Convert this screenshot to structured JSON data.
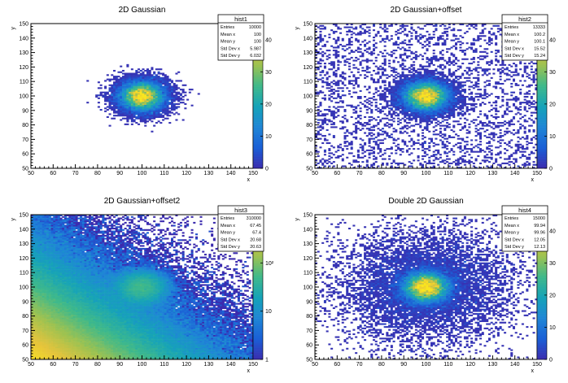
{
  "colors": {
    "frame": "#000000",
    "background": "#ffffff",
    "palette": [
      "#3b2bae",
      "#1b5fd6",
      "#1f86d6",
      "#16a3b8",
      "#3fb98a",
      "#9dc251",
      "#e6c43b",
      "#f9e51f"
    ]
  },
  "chart_data": [
    {
      "type": "heatmap",
      "title": "2D Gaussian",
      "xlabel": "x",
      "ylabel": "y",
      "xlim": [
        50,
        150
      ],
      "ylim": [
        50,
        150
      ],
      "x_ticks": [
        "50",
        "60",
        "70",
        "80",
        "90",
        "100",
        "110",
        "120",
        "130",
        "140",
        "150"
      ],
      "y_ticks": [
        "50",
        "60",
        "70",
        "80",
        "90",
        "100",
        "110",
        "120",
        "130",
        "140",
        "150"
      ],
      "colorbar": {
        "scale": "linear",
        "range": [
          0,
          45
        ],
        "ticks": [
          "0",
          "10",
          "20",
          "30",
          "40"
        ]
      },
      "stats": {
        "name": "hist1",
        "rows": [
          {
            "label": "Entries",
            "value": "10000"
          },
          {
            "label": "Mean x",
            "value": "100"
          },
          {
            "label": "Mean y",
            "value": "100"
          },
          {
            "label": "Std Dev x",
            "value": "5.987"
          },
          {
            "label": "Std Dev y",
            "value": "6.032"
          }
        ]
      },
      "components": [
        {
          "type": "gauss",
          "mx": 100,
          "my": 100,
          "sx": 5.987,
          "sy": 6.032,
          "peak": 45
        }
      ],
      "threshold": 0.6
    },
    {
      "type": "heatmap",
      "title": "2D Gaussian+offset",
      "xlabel": "x",
      "ylabel": "y",
      "xlim": [
        50,
        150
      ],
      "ylim": [
        50,
        150
      ],
      "x_ticks": [
        "50",
        "60",
        "70",
        "80",
        "90",
        "100",
        "110",
        "120",
        "130",
        "140",
        "150"
      ],
      "y_ticks": [
        "50",
        "60",
        "70",
        "80",
        "90",
        "100",
        "110",
        "120",
        "130",
        "140",
        "150"
      ],
      "colorbar": {
        "scale": "linear",
        "range": [
          0,
          45
        ],
        "ticks": [
          "0",
          "10",
          "20",
          "30",
          "40"
        ]
      },
      "stats": {
        "name": "hist2",
        "rows": [
          {
            "label": "Entries",
            "value": "13333"
          },
          {
            "label": "Mean x",
            "value": "100.2"
          },
          {
            "label": "Mean y",
            "value": "100.1"
          },
          {
            "label": "Std Dev x",
            "value": "15.52"
          },
          {
            "label": "Std Dev y",
            "value": "15.24"
          }
        ]
      },
      "components": [
        {
          "type": "gauss",
          "mx": 100,
          "my": 100,
          "sx": 6,
          "sy": 6,
          "peak": 45
        },
        {
          "type": "flat",
          "level": 0.33
        }
      ],
      "threshold": 0.6
    },
    {
      "type": "heatmap",
      "title": "2D Gaussian+offset2",
      "xlabel": "x",
      "ylabel": "y",
      "xlim": [
        50,
        150
      ],
      "ylim": [
        50,
        150
      ],
      "x_ticks": [
        "50",
        "60",
        "70",
        "80",
        "90",
        "100",
        "110",
        "120",
        "130",
        "140",
        "150"
      ],
      "y_ticks": [
        "50",
        "60",
        "70",
        "80",
        "90",
        "100",
        "110",
        "120",
        "130",
        "140",
        "150"
      ],
      "colorbar": {
        "scale": "log",
        "range": [
          1,
          1000
        ],
        "ticks": [
          "1",
          "10",
          "10²"
        ]
      },
      "stats": {
        "name": "hist3",
        "rows": [
          {
            "label": "Entries",
            "value": "310000"
          },
          {
            "label": "Mean x",
            "value": "67.45"
          },
          {
            "label": "Mean y",
            "value": "67.4"
          },
          {
            "label": "Std Dev x",
            "value": "20.68"
          },
          {
            "label": "Std Dev y",
            "value": "20.63"
          }
        ]
      },
      "components": [
        {
          "type": "gauss",
          "mx": 100,
          "my": 100,
          "sx": 6,
          "sy": 6,
          "peak": 45
        },
        {
          "type": "exp",
          "x0": 50,
          "y0": 50,
          "amp": 800,
          "scale": 19
        }
      ],
      "threshold": 0.6
    },
    {
      "type": "heatmap",
      "title": "Double 2D Gaussian",
      "xlabel": "x",
      "ylabel": "y",
      "xlim": [
        50,
        150
      ],
      "ylim": [
        50,
        150
      ],
      "x_ticks": [
        "50",
        "60",
        "70",
        "80",
        "90",
        "100",
        "110",
        "120",
        "130",
        "140",
        "150"
      ],
      "y_ticks": [
        "50",
        "60",
        "70",
        "80",
        "90",
        "100",
        "110",
        "120",
        "130",
        "140",
        "150"
      ],
      "colorbar": {
        "scale": "linear",
        "range": [
          0,
          45
        ],
        "ticks": [
          "0",
          "10",
          "20",
          "30",
          "40"
        ]
      },
      "stats": {
        "name": "hist4",
        "rows": [
          {
            "label": "Entries",
            "value": "15000"
          },
          {
            "label": "Mean x",
            "value": "99.94"
          },
          {
            "label": "Mean y",
            "value": "99.96"
          },
          {
            "label": "Std Dev x",
            "value": "12.05"
          },
          {
            "label": "Std Dev y",
            "value": "12.13"
          }
        ]
      },
      "components": [
        {
          "type": "gauss",
          "mx": 100,
          "my": 100,
          "sx": 6,
          "sy": 6,
          "peak": 45
        },
        {
          "type": "gauss",
          "mx": 100,
          "my": 100,
          "sx": 20,
          "sy": 20,
          "peak": 3
        }
      ],
      "threshold": 0.6
    }
  ]
}
